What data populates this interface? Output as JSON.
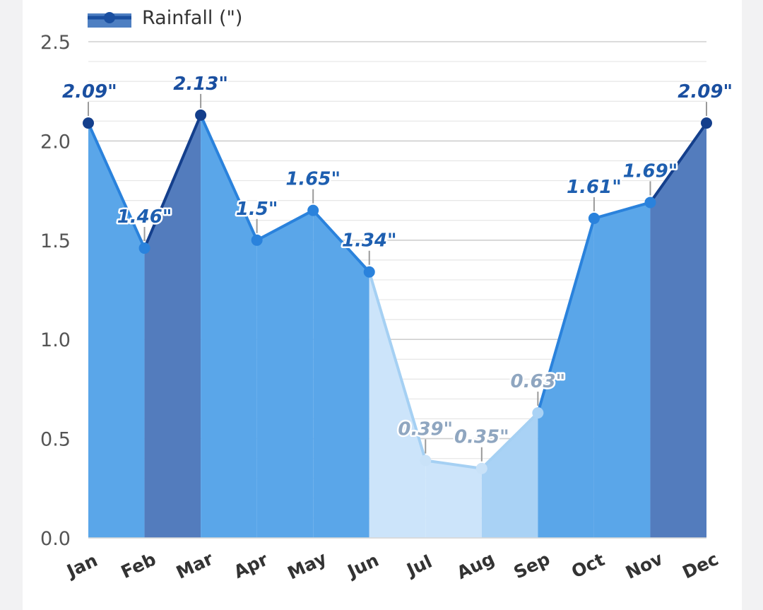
{
  "chart_data": {
    "type": "area",
    "categories": [
      "Jan",
      "Feb",
      "Mar",
      "Apr",
      "May",
      "Jun",
      "Jul",
      "Aug",
      "Sep",
      "Oct",
      "Nov",
      "Dec"
    ],
    "series": [
      {
        "name": "Rainfall (\")",
        "values": [
          2.09,
          1.46,
          2.13,
          1.5,
          1.65,
          1.34,
          0.39,
          0.35,
          0.63,
          1.61,
          1.69,
          2.09
        ],
        "data_labels": [
          "2.09\"",
          "1.46\"",
          "2.13\"",
          "1.5\"",
          "1.65\"",
          "1.34\"",
          "0.39\"",
          "0.35\"",
          "0.63\"",
          "1.61\"",
          "1.69\"",
          "2.09\""
        ]
      }
    ],
    "y_ticks": [
      "0.0",
      "0.5",
      "1.0",
      "1.5",
      "2.0",
      "2.5"
    ],
    "ylim": [
      0,
      2.5
    ],
    "grid": true,
    "legend_position": "top-left",
    "colors": {
      "legend_line": "#1a4fa0",
      "legend_box": "#4e7fc2",
      "fill_wettest": "#537cbd",
      "fill_wet": "#5aa6e9",
      "fill_dry": "#cce4fa",
      "fill_sep": "#a9d2f5",
      "line_wettest": "#143f8c",
      "line_wet": "#2a82dc",
      "line_dry": "#a5d0f3",
      "label_wettest": "#1a4fa0",
      "label_wet": "#1e5fb0",
      "label_dry": "#8fa6c0"
    }
  }
}
